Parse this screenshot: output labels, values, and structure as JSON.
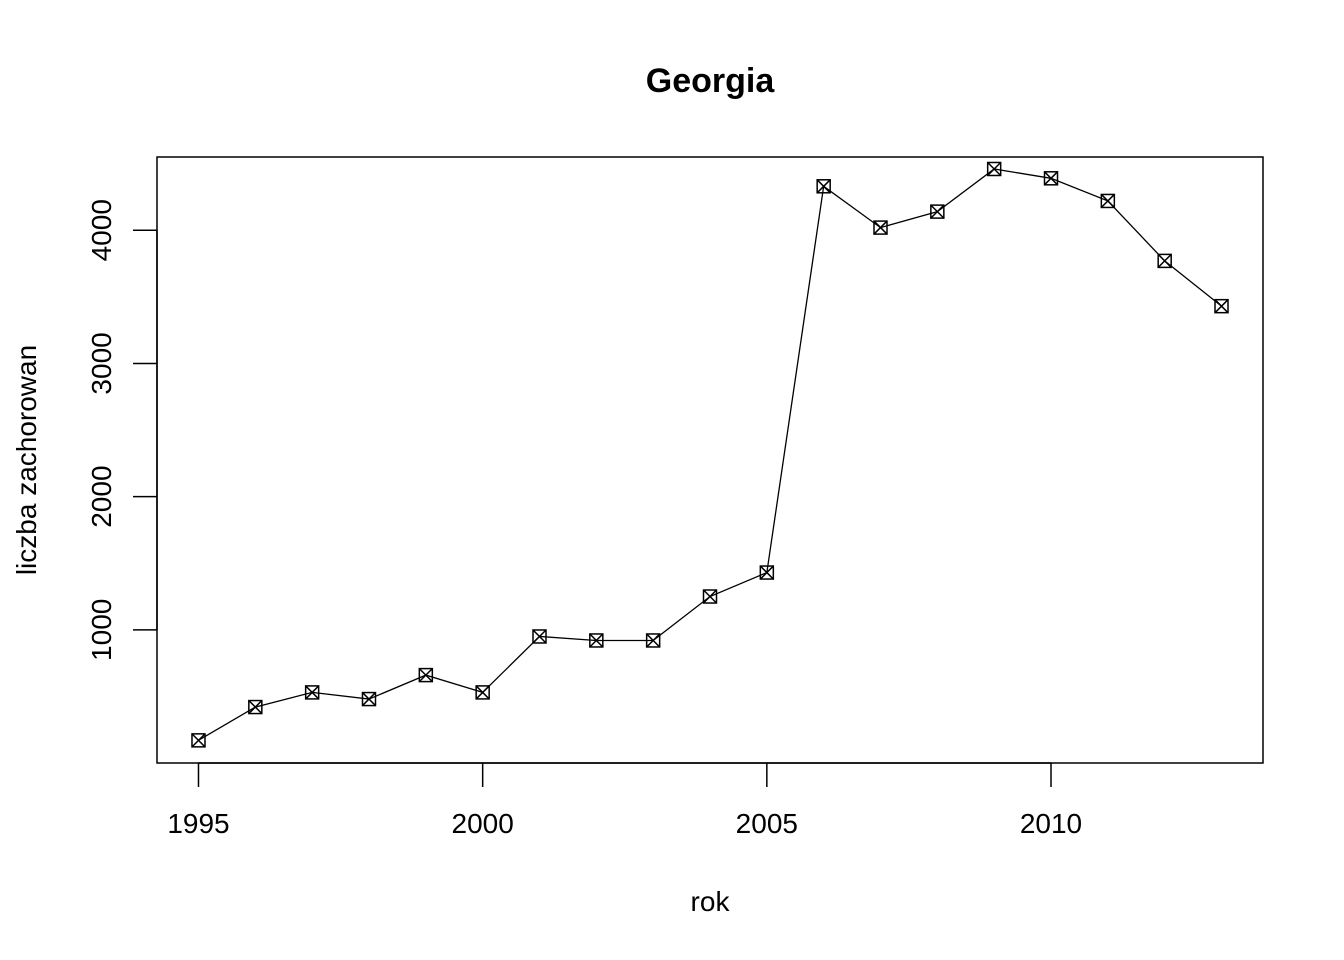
{
  "chart_data": {
    "type": "line",
    "title": "Georgia",
    "xlabel": "rok",
    "ylabel": "liczba zachorowan",
    "x": [
      1995,
      1996,
      1997,
      1998,
      1999,
      2000,
      2001,
      2002,
      2003,
      2004,
      2005,
      2006,
      2007,
      2008,
      2009,
      2010,
      2011,
      2012,
      2013
    ],
    "values": [
      170,
      420,
      530,
      480,
      660,
      530,
      950,
      920,
      920,
      1250,
      1430,
      4330,
      4020,
      4140,
      4460,
      4390,
      4220,
      3770,
      3430
    ],
    "xlim": [
      1994.27,
      2013.73
    ],
    "ylim": [
      0,
      4550
    ],
    "xticks": [
      "1995",
      "2000",
      "2005",
      "2010"
    ],
    "yticks": [
      "1000",
      "2000",
      "3000",
      "4000"
    ],
    "marker": "square-x",
    "grid": false,
    "line_color": "#000000"
  }
}
